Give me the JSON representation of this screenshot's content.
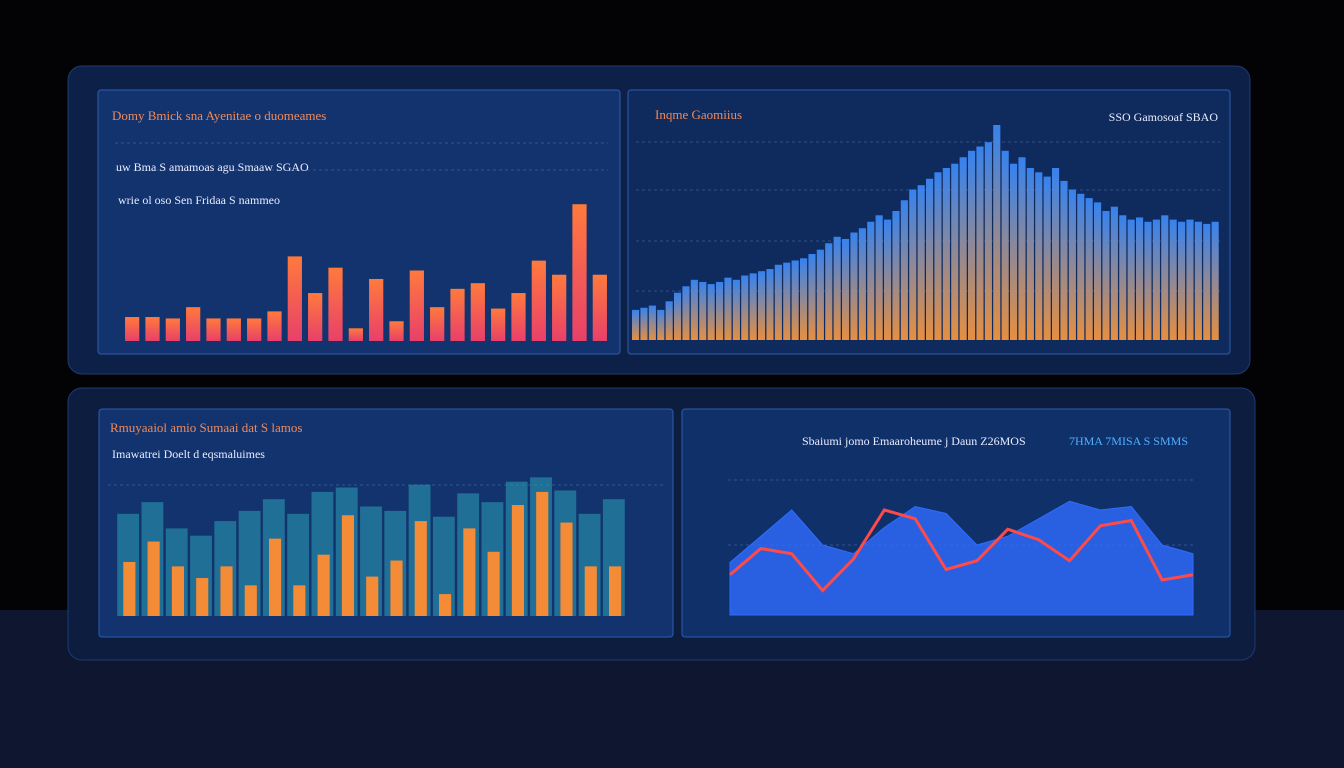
{
  "chart_data": [
    {
      "type": "bar",
      "title": "Domy Bmick sna Ayenitae o duomeames",
      "subtitle": "uw Bma S amamoas agu Smaaw SGAO",
      "annotation": "wrie ol oso Sen Fridaa S nammeo",
      "values": [
        17,
        17,
        16,
        24,
        16,
        16,
        16,
        21,
        60,
        34,
        52,
        9,
        44,
        14,
        50,
        24,
        37,
        41,
        23,
        34,
        57,
        47,
        97,
        47
      ],
      "colors": [
        "#ff7a3c",
        "#e8406a"
      ],
      "ylim": [
        0,
        100
      ]
    },
    {
      "type": "dense",
      "title": "Inqme Gaomiius",
      "subtitle": "SSO Gamosoaf SBAO",
      "values": [
        14,
        15,
        16,
        14,
        18,
        22,
        25,
        28,
        27,
        26,
        27,
        29,
        28,
        30,
        31,
        32,
        33,
        35,
        36,
        37,
        38,
        40,
        42,
        45,
        48,
        47,
        50,
        52,
        55,
        58,
        56,
        60,
        65,
        70,
        72,
        75,
        78,
        80,
        82,
        85,
        88,
        90,
        92,
        100,
        88,
        82,
        85,
        80,
        78,
        76,
        80,
        74,
        70,
        68,
        66,
        64,
        60,
        62,
        58,
        56,
        57,
        55,
        56,
        58,
        56,
        55,
        56,
        55,
        54,
        55
      ],
      "colors": [
        "#3a8cff",
        "#ff9a3c"
      ],
      "ylim": [
        0,
        100
      ]
    },
    {
      "type": "grouped",
      "title": "Rmuyaaiol amio Sumaai dat S lamos",
      "subtitle": "Imawatrei Doelt d eqsmaluimes",
      "series": [
        {
          "name": "Sumaai",
          "color": "#ff8c32",
          "values": [
            37,
            51,
            34,
            26,
            34,
            21,
            53,
            21,
            42,
            69,
            27,
            38,
            65,
            15,
            60,
            44,
            76,
            85,
            64,
            34,
            34
          ]
        },
        {
          "name": "Doelt",
          "color": "#2aa0b8",
          "values": [
            70,
            78,
            60,
            55,
            65,
            72,
            80,
            70,
            85,
            88,
            75,
            72,
            90,
            68,
            84,
            78,
            92,
            95,
            86,
            70,
            80
          ]
        }
      ],
      "ylim": [
        0,
        100
      ]
    },
    {
      "type": "arealine",
      "title": "Sbaiumi jomo Emaaroheume j Daun Z26MOS",
      "subtitle": "7HMA 7MISA S SMMS",
      "series": [
        {
          "name": "Emaaroheume",
          "color": "#2f6dff",
          "values": [
            30,
            45,
            60,
            40,
            35,
            50,
            62,
            58,
            40,
            45,
            55,
            65,
            60,
            62,
            40,
            35
          ]
        },
        {
          "name": "Daun",
          "color": "#ff4a4a",
          "values": [
            23,
            38,
            35,
            14,
            32,
            60,
            55,
            26,
            31,
            49,
            43,
            31,
            51,
            54,
            20,
            23
          ]
        }
      ],
      "ylim": [
        0,
        100
      ]
    }
  ]
}
